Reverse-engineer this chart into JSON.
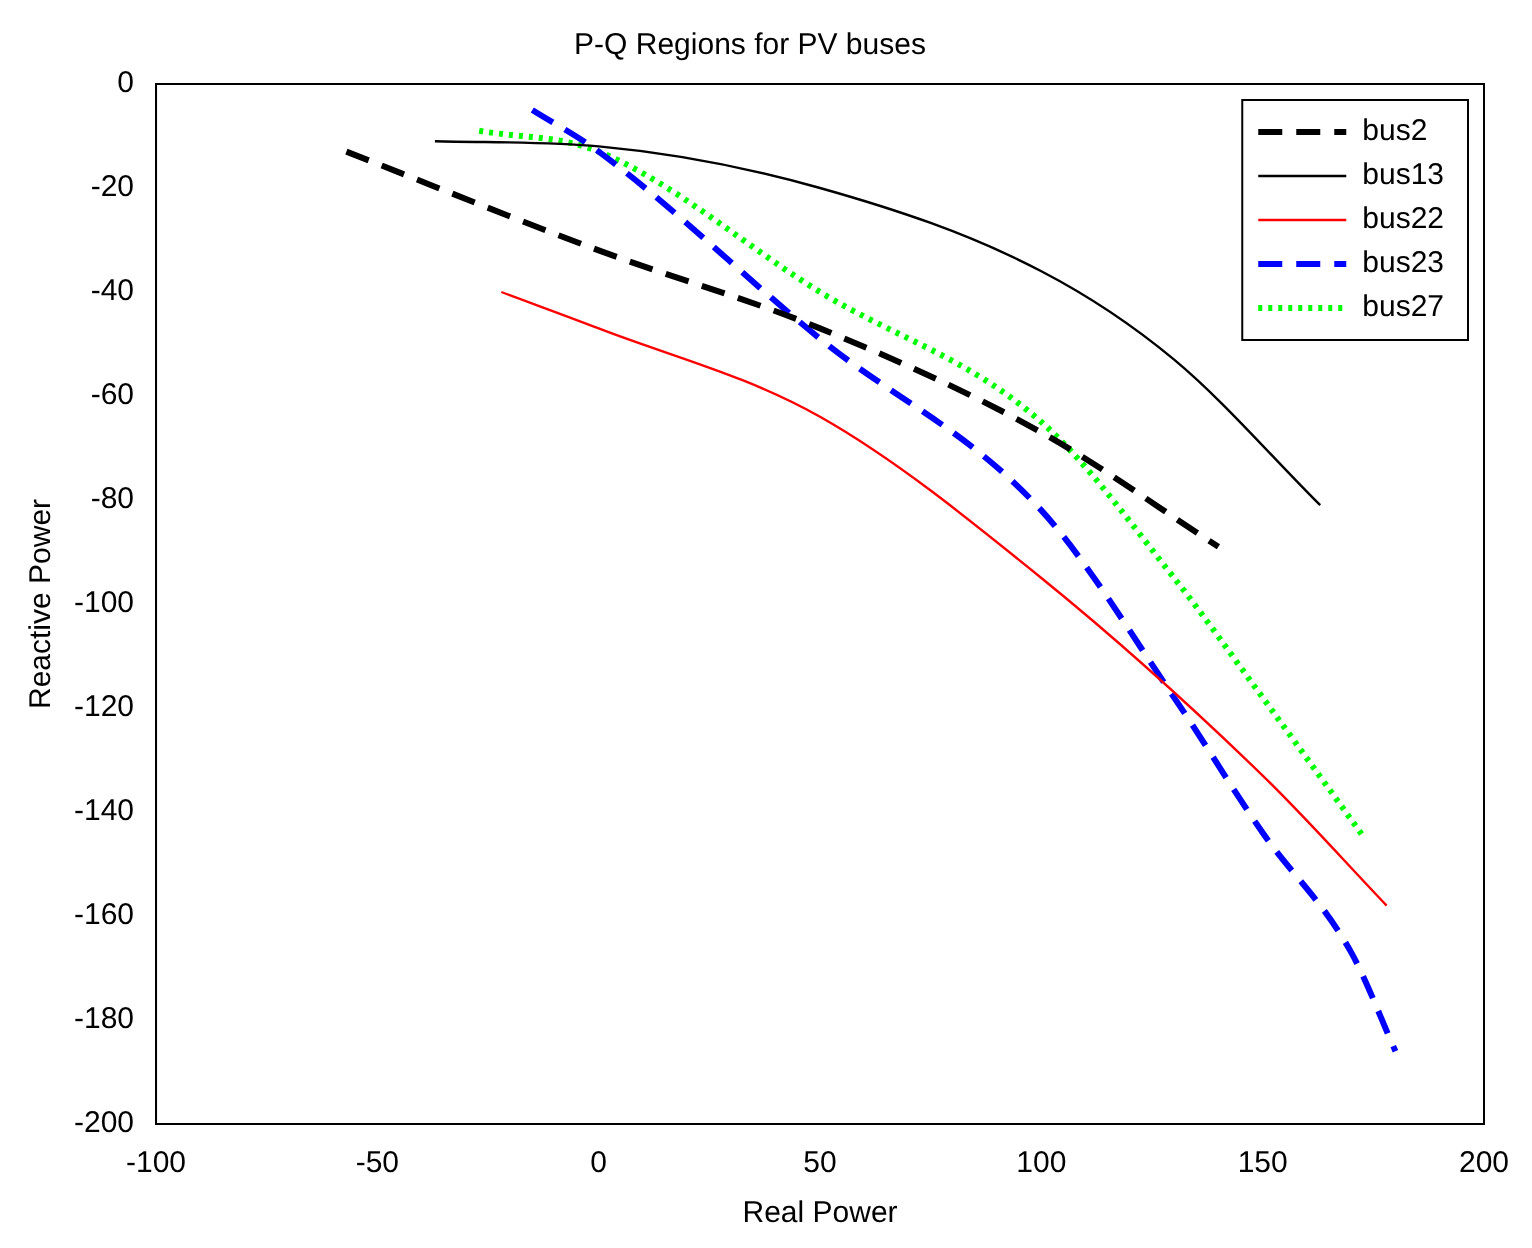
{
  "chart_data": {
    "type": "line",
    "title": "P-Q Regions for PV buses",
    "xlabel": "Real Power",
    "ylabel": "Reactive Power",
    "xlim": [
      -100,
      200
    ],
    "xticks": [
      -100,
      -50,
      0,
      50,
      100,
      150,
      200
    ],
    "ylim": [
      -200,
      0
    ],
    "yticks": [
      -200,
      -180,
      -160,
      -140,
      -120,
      -100,
      -80,
      -60,
      -40,
      -20,
      0
    ],
    "grid": false,
    "legend": "top right",
    "marker": "none",
    "series": [
      {
        "name": "bus2",
        "color": "#000000",
        "line_style": "dashed",
        "x": [
          -57,
          0,
          50,
          100,
          140
        ],
        "values": [
          -13,
          -32,
          -47,
          -67,
          -89
        ]
      },
      {
        "name": "bus13",
        "color": "#000000",
        "line_style": "solid",
        "x": [
          -37,
          0,
          50,
          100,
          130,
          163
        ],
        "values": [
          -11,
          -12,
          -20,
          -36,
          -53,
          -81
        ]
      },
      {
        "name": "bus22",
        "color": "#ff0000",
        "line_style": "solid",
        "x": [
          -22,
          0,
          50,
          100,
          150,
          178
        ],
        "values": [
          -40,
          -47,
          -64,
          -95,
          -133,
          -158
        ]
      },
      {
        "name": "bus23",
        "color": "#0000ff",
        "line_style": "dashed",
        "x": [
          -15,
          0,
          50,
          100,
          130,
          150,
          170,
          180
        ],
        "values": [
          -5,
          -13,
          -49,
          -82,
          -118,
          -144,
          -167,
          -186
        ]
      },
      {
        "name": "bus27",
        "color": "#00ff00",
        "line_style": "dotted",
        "x": [
          -27,
          0,
          50,
          100,
          130,
          150,
          173
        ],
        "values": [
          -9,
          -13,
          -40,
          -65,
          -95,
          -118,
          -145
        ]
      }
    ]
  }
}
